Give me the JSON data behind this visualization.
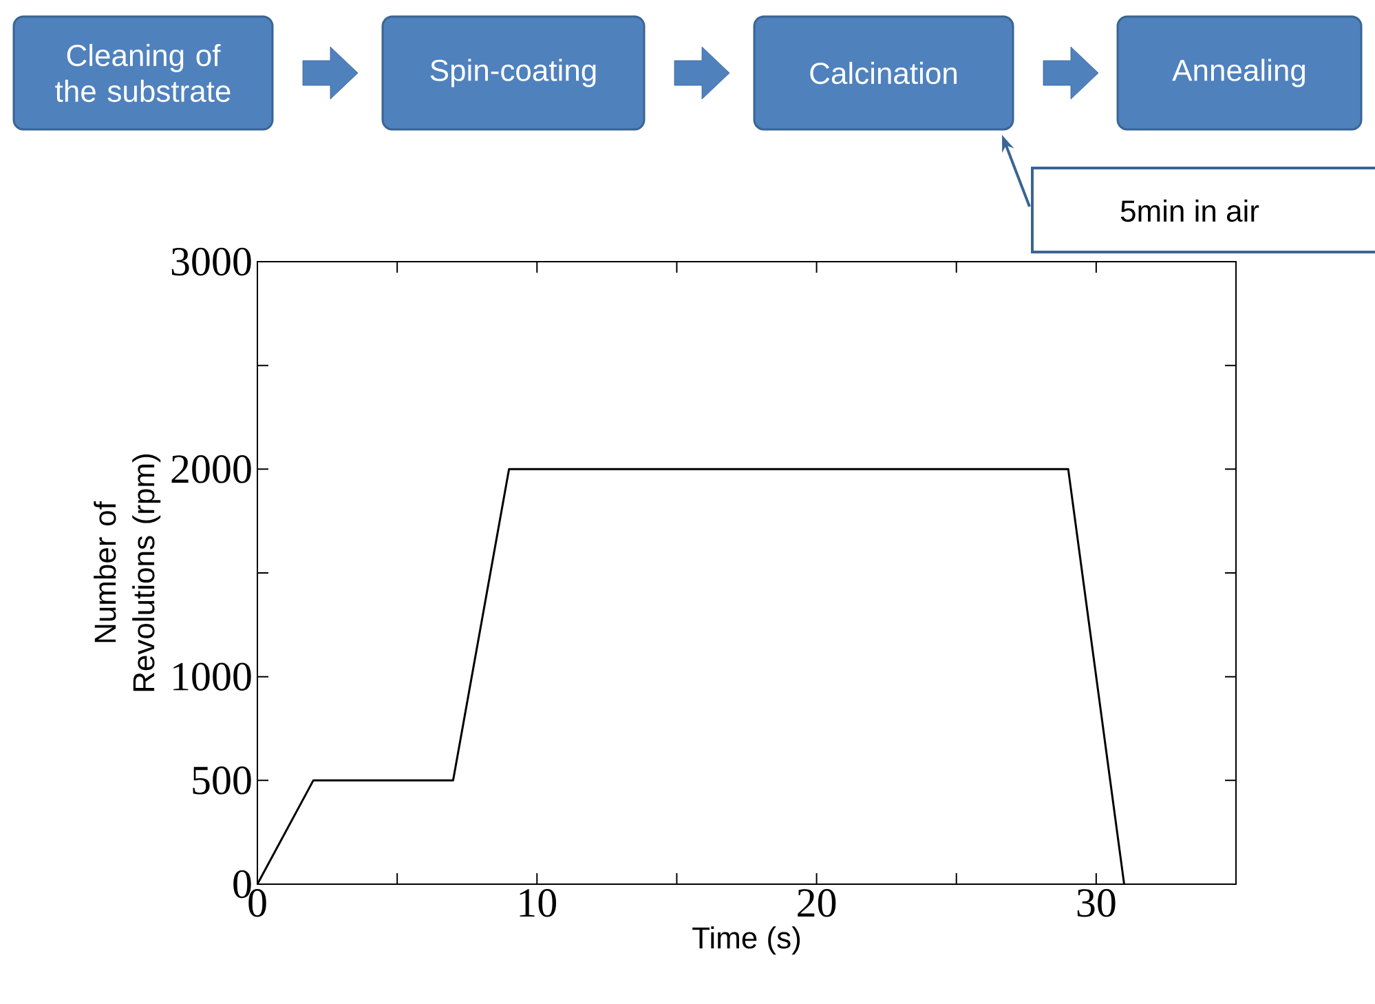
{
  "chart_data": {
    "type": "line",
    "x": [
      0,
      2,
      7,
      9,
      29,
      31
    ],
    "values": [
      0,
      500,
      500,
      2000,
      2000,
      0
    ],
    "color": "#000000",
    "xlabel": "Time (s)",
    "ylabel": "Number of Revolutions (rpm)",
    "xlim": [
      0,
      35
    ],
    "ylim": [
      0,
      3000
    ],
    "xticks": [
      0,
      {
        "value": 5,
        "label": null
      },
      10,
      {
        "value": 15,
        "label": null
      },
      20,
      {
        "value": 25,
        "label": null
      },
      30
    ],
    "yticks": [
      0,
      500,
      1000,
      {
        "value": 1500,
        "label": null
      },
      2000,
      {
        "value": 2500,
        "label": null
      },
      3000
    ],
    "grid": false,
    "marker": "none",
    "line_style": "solid",
    "annotations": [
      "Cleaning of the substrate",
      "Spin-coating",
      "Calcination",
      "Annealing",
      "5min in air"
    ]
  }
}
